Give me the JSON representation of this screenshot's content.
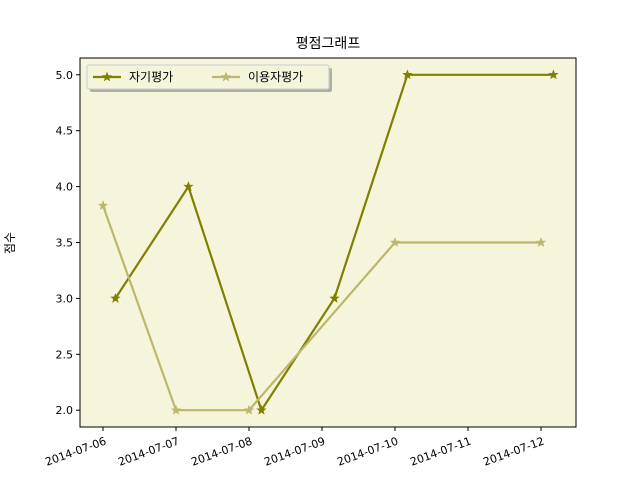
{
  "chart_data": {
    "type": "line",
    "title": "평점그래프",
    "xlabel": "",
    "ylabel": "점수",
    "x_ticks": [
      "2014-07-06",
      "2014-07-07",
      "2014-07-08",
      "2014-07-09",
      "2014-07-10",
      "2014-07-11",
      "2014-07-12"
    ],
    "xlim": [
      "2014-07-06",
      "2014-07-12"
    ],
    "ylim": [
      1.85,
      5.15
    ],
    "y_ticks": [
      2.0,
      2.5,
      3.0,
      3.5,
      4.0,
      4.5,
      5.0
    ],
    "grid": false,
    "background_color": "#f5f5dc",
    "legend_position": "top-left",
    "series": [
      {
        "name": "자기평가",
        "color": "#808000",
        "marker": "star",
        "points": [
          {
            "x": "2014-07-06",
            "y": 3.0
          },
          {
            "x": "2014-07-07",
            "y": 4.0
          },
          {
            "x": "2014-07-08",
            "y": 2.0
          },
          {
            "x": "2014-07-09",
            "y": 3.0
          },
          {
            "x": "2014-07-10",
            "y": 5.0
          },
          {
            "x": "2014-07-12",
            "y": 5.0
          }
        ]
      },
      {
        "name": "이용자평가",
        "color": "#bdb76b",
        "marker": "star",
        "points": [
          {
            "x": "2014-07-06",
            "y": 3.83
          },
          {
            "x": "2014-07-07",
            "y": 2.0
          },
          {
            "x": "2014-07-08",
            "y": 2.0
          },
          {
            "x": "2014-07-10",
            "y": 3.5
          },
          {
            "x": "2014-07-12",
            "y": 3.5
          }
        ]
      }
    ]
  }
}
